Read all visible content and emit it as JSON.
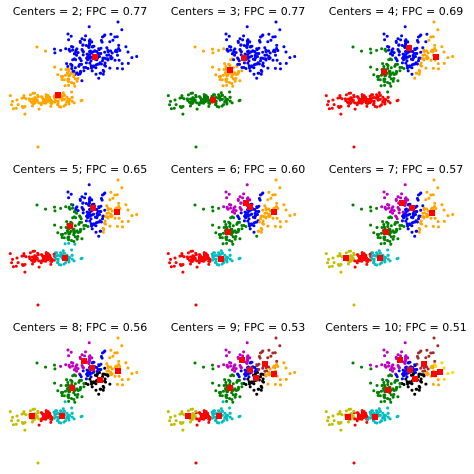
{
  "chart_data": [
    {
      "type": "scatter",
      "title": "Centers = 2; FPC = 0.77",
      "centers": 2,
      "fpc": 0.77
    },
    {
      "type": "scatter",
      "title": "Centers = 3; FPC = 0.77",
      "centers": 3,
      "fpc": 0.77
    },
    {
      "type": "scatter",
      "title": "Centers = 4; FPC = 0.69",
      "centers": 4,
      "fpc": 0.69
    },
    {
      "type": "scatter",
      "title": "Centers = 5; FPC = 0.65",
      "centers": 5,
      "fpc": 0.65
    },
    {
      "type": "scatter",
      "title": "Centers = 6; FPC = 0.60",
      "centers": 6,
      "fpc": 0.6
    },
    {
      "type": "scatter",
      "title": "Centers = 7; FPC = 0.57",
      "centers": 7,
      "fpc": 0.57
    },
    {
      "type": "scatter",
      "title": "Centers = 8; FPC = 0.56",
      "centers": 8,
      "fpc": 0.56
    },
    {
      "type": "scatter",
      "title": "Centers = 9; FPC = 0.53",
      "centers": 9,
      "fpc": 0.53
    },
    {
      "type": "scatter",
      "title": "Centers = 10; FPC = 0.51",
      "centers": 10,
      "fpc": 0.51
    }
  ],
  "cluster_palette": [
    "#0000ff",
    "#ffa500",
    "#008000",
    "#ff0000",
    "#00bfbf",
    "#bf00bf",
    "#bfbf00",
    "#000000",
    "#a52a2a",
    "#ffd700"
  ],
  "center_marker_color": "#ff0000"
}
